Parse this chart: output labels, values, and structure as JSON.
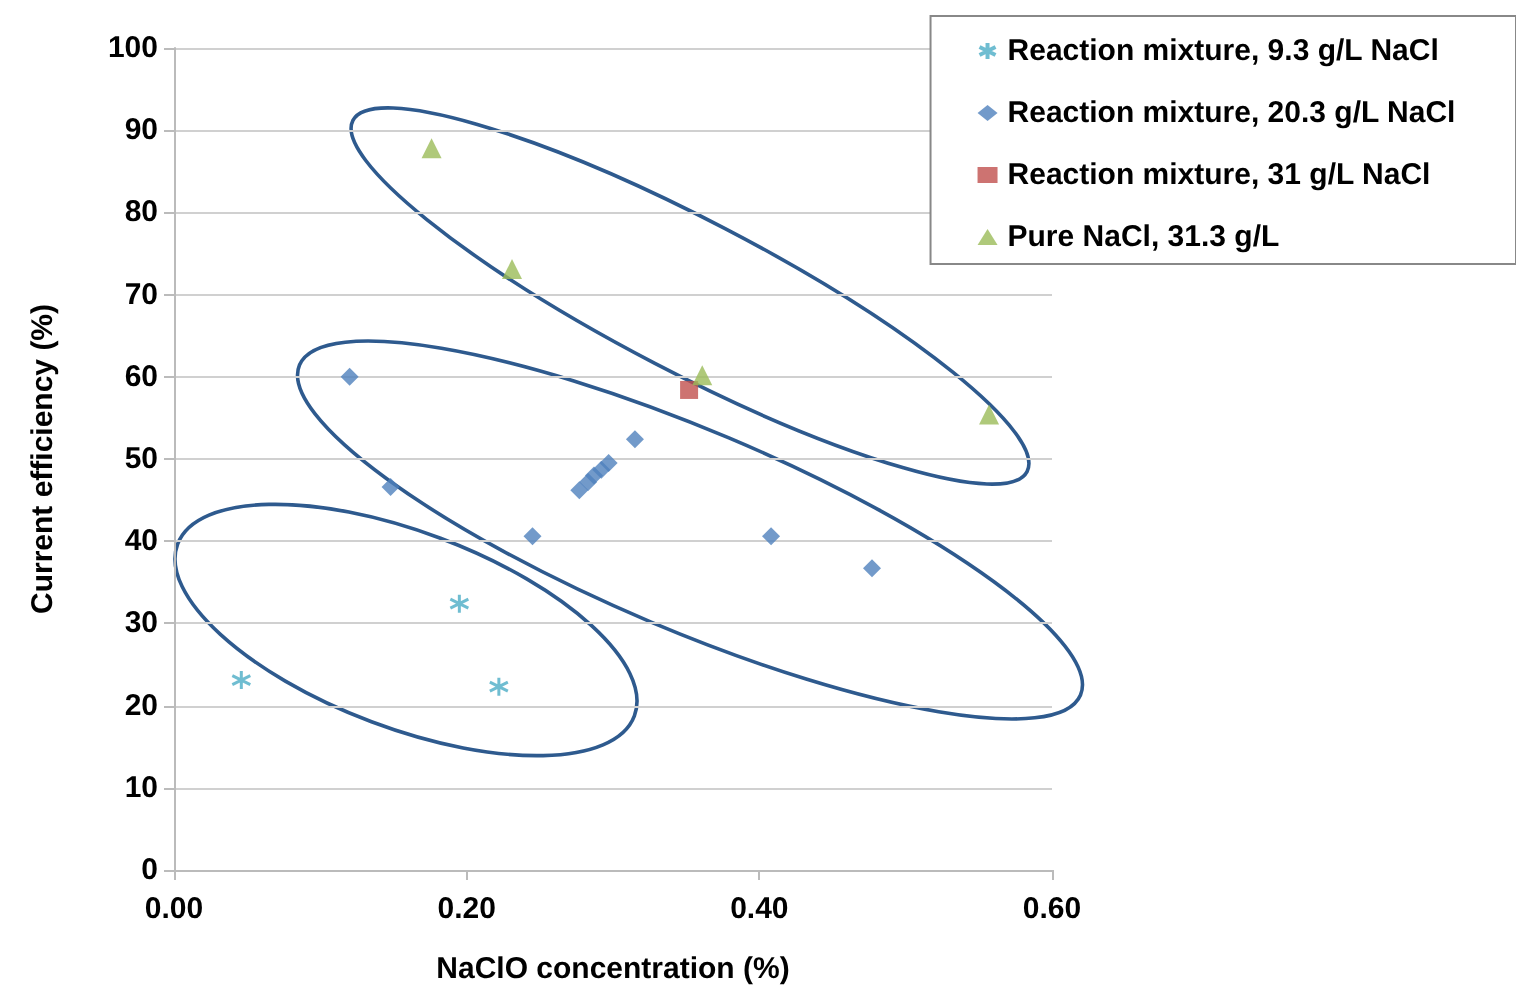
{
  "chart_data": {
    "type": "scatter",
    "xlabel": "NaClO concentration (%)",
    "ylabel": "Current efficiency (%)",
    "xlim": [
      0,
      0.6
    ],
    "xticks": [
      {
        "value": 0,
        "label": "0.00"
      },
      {
        "value": 0.2,
        "label": "0.20"
      },
      {
        "value": 0.4,
        "label": "0.40"
      },
      {
        "value": 0.6,
        "label": "0.60"
      }
    ],
    "ylim": [
      0,
      100
    ],
    "yticks": [
      0,
      10,
      20,
      30,
      40,
      50,
      60,
      70,
      80,
      90,
      100
    ],
    "grid": "y",
    "legend": "top right",
    "series": [
      {
        "name": "Reaction mixture, 9.3 g/L NaCl",
        "color": "#4bacc6",
        "marker": "cross",
        "x": [
          0.046,
          0.195,
          0.222
        ],
        "values": [
          23.1,
          32.4,
          22.3
        ]
      },
      {
        "name": "Reaction mixture, 20.3 g/L NaCl",
        "color": "#4f81bd",
        "marker": "diamond",
        "x": [
          0.12,
          0.148,
          0.245,
          0.277,
          0.283,
          0.287,
          0.292,
          0.297,
          0.315,
          0.408,
          0.477
        ],
        "values": [
          60.0,
          46.6,
          40.6,
          46.2,
          47.2,
          48.0,
          48.7,
          49.5,
          52.4,
          40.6,
          36.7
        ]
      },
      {
        "name": "Reaction mixture, 31 g/L NaCl",
        "color": "#c0504d",
        "marker": "square",
        "x": [
          0.352
        ],
        "values": [
          58.4
        ]
      },
      {
        "name": "Pure NaCl, 31.3 g/L",
        "color": "#9bbb59",
        "marker": "triangle",
        "x": [
          0.176,
          0.231,
          0.361,
          0.557
        ],
        "values": [
          87.8,
          73.1,
          60.2,
          55.4
        ]
      }
    ]
  }
}
